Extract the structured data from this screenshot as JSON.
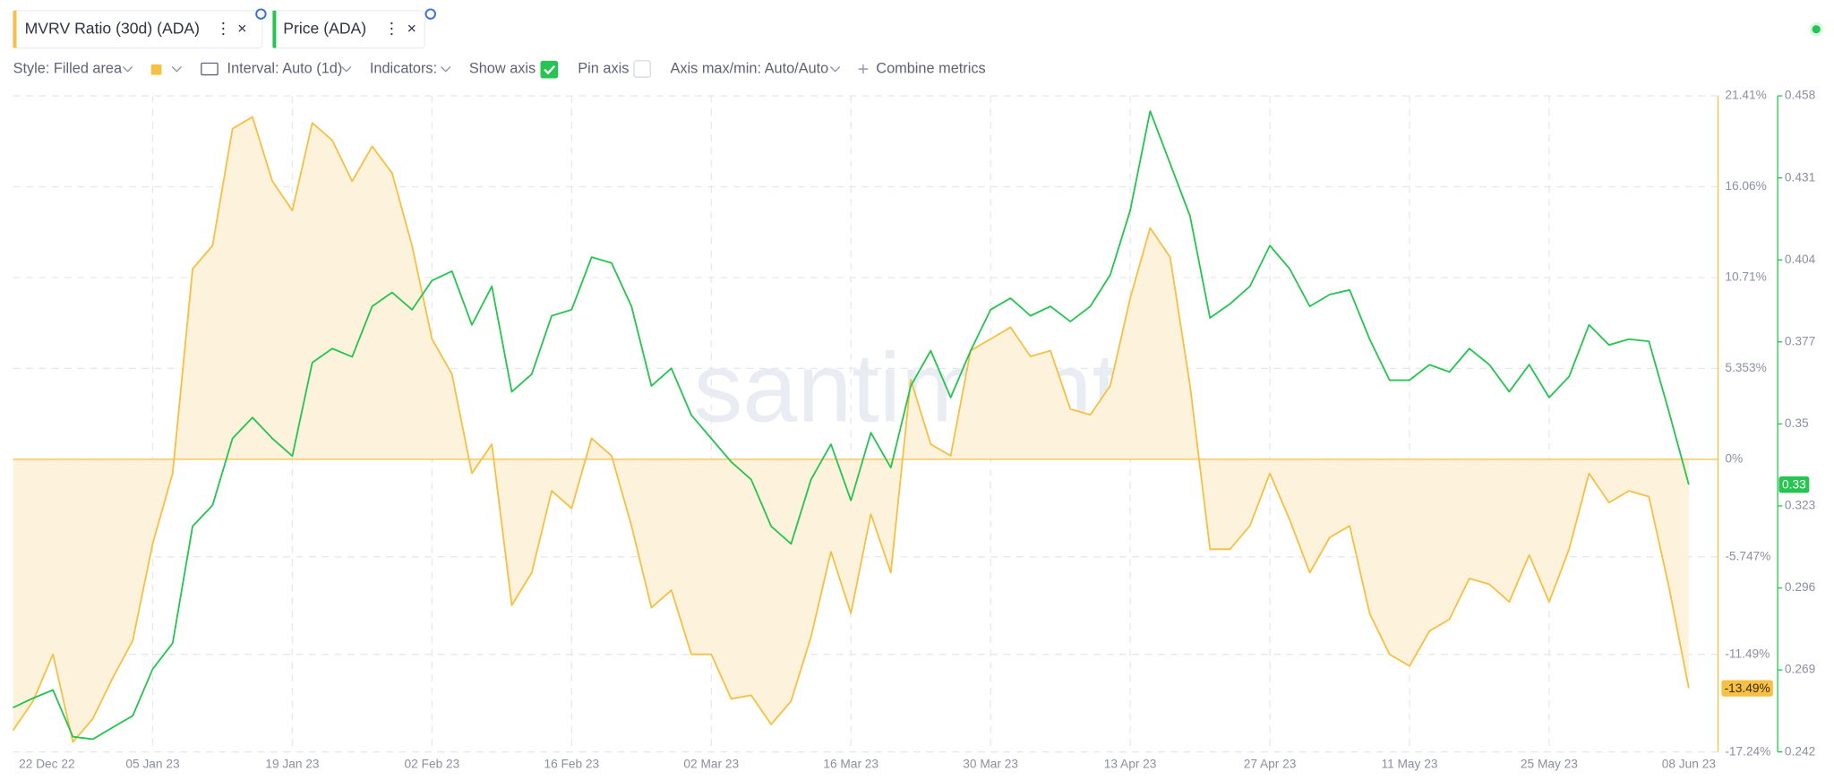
{
  "toolbar": {
    "style": "Style: Filled area",
    "interval": "Interval: Auto (1d)",
    "indicators": "Indicators:",
    "show_axis": "Show axis",
    "pin_axis": "Pin axis",
    "axis_range": "Axis max/min: Auto/Auto",
    "combine": "Combine metrics"
  },
  "watermark": "santiment",
  "chart_data": {
    "type": "line",
    "x": [
      "2022-12-22",
      "2022-12-24",
      "2022-12-26",
      "2022-12-28",
      "2022-12-30",
      "2023-01-01",
      "2023-01-03",
      "2023-01-05",
      "2023-01-07",
      "2023-01-09",
      "2023-01-11",
      "2023-01-13",
      "2023-01-15",
      "2023-01-17",
      "2023-01-19",
      "2023-01-21",
      "2023-01-23",
      "2023-01-25",
      "2023-01-27",
      "2023-01-29",
      "2023-01-31",
      "2023-02-02",
      "2023-02-04",
      "2023-02-06",
      "2023-02-08",
      "2023-02-10",
      "2023-02-12",
      "2023-02-14",
      "2023-02-16",
      "2023-02-18",
      "2023-02-20",
      "2023-02-22",
      "2023-02-24",
      "2023-02-26",
      "2023-02-28",
      "2023-03-02",
      "2023-03-04",
      "2023-03-06",
      "2023-03-08",
      "2023-03-10",
      "2023-03-12",
      "2023-03-14",
      "2023-03-16",
      "2023-03-18",
      "2023-03-20",
      "2023-03-22",
      "2023-03-24",
      "2023-03-26",
      "2023-03-28",
      "2023-03-30",
      "2023-04-01",
      "2023-04-03",
      "2023-04-05",
      "2023-04-07",
      "2023-04-09",
      "2023-04-11",
      "2023-04-13",
      "2023-04-15",
      "2023-04-17",
      "2023-04-19",
      "2023-04-21",
      "2023-04-23",
      "2023-04-25",
      "2023-04-27",
      "2023-04-29",
      "2023-05-01",
      "2023-05-03",
      "2023-05-05",
      "2023-05-07",
      "2023-05-09",
      "2023-05-11",
      "2023-05-13",
      "2023-05-15",
      "2023-05-17",
      "2023-05-19",
      "2023-05-21",
      "2023-05-23",
      "2023-05-25",
      "2023-05-27",
      "2023-05-29",
      "2023-05-31",
      "2023-06-02",
      "2023-06-04",
      "2023-06-06",
      "2023-06-08"
    ],
    "xlim": [
      "2022-12-22",
      "2023-06-08"
    ],
    "xticks": [
      {
        "value": "2022-12-22",
        "label": "22 Dec 22"
      },
      {
        "value": "2023-01-05",
        "label": "05 Jan 23"
      },
      {
        "value": "2023-01-19",
        "label": "19 Jan 23"
      },
      {
        "value": "2023-02-02",
        "label": "02 Feb 23"
      },
      {
        "value": "2023-02-16",
        "label": "16 Feb 23"
      },
      {
        "value": "2023-03-02",
        "label": "02 Mar 23"
      },
      {
        "value": "2023-03-16",
        "label": "16 Mar 23"
      },
      {
        "value": "2023-03-30",
        "label": "30 Mar 23"
      },
      {
        "value": "2023-04-13",
        "label": "13 Apr 23"
      },
      {
        "value": "2023-04-27",
        "label": "27 Apr 23"
      },
      {
        "value": "2023-05-11",
        "label": "11 May 23"
      },
      {
        "value": "2023-05-25",
        "label": "25 May 23"
      },
      {
        "value": "2023-06-08",
        "label": "08 Jun 23"
      }
    ],
    "ylim": [
      -17.24,
      21.41
    ],
    "yticks": [
      {
        "value": 21.41,
        "label": "21.41%"
      },
      {
        "value": 16.06,
        "label": "16.06%"
      },
      {
        "value": 10.71,
        "label": "10.71%"
      },
      {
        "value": 5.353,
        "label": "5.353%"
      },
      {
        "value": 0,
        "label": "0%"
      },
      {
        "value": -5.747,
        "label": "-5.747%"
      },
      {
        "value": -11.49,
        "label": "-11.49%"
      },
      {
        "value": -17.24,
        "label": "-17.24%"
      }
    ],
    "y2lim": [
      0.242,
      0.458
    ],
    "y2ticks": [
      0.458,
      0.431,
      0.404,
      0.377,
      0.35,
      0.323,
      0.296,
      0.269,
      0.242
    ],
    "grid": true,
    "series": [
      {
        "name": "MVRV Ratio (30d) (ADA)",
        "color": "#f5c044",
        "fill": "#fdf3dc",
        "axis": "y",
        "last_label": "-13.49%",
        "values": [
          -15.97,
          -14.25,
          -11.49,
          -16.66,
          -15.28,
          -12.87,
          -10.67,
          -4.96,
          -0.83,
          11.22,
          12.59,
          19.48,
          20.17,
          16.38,
          14.66,
          19.82,
          18.79,
          16.38,
          18.44,
          16.86,
          12.59,
          7.09,
          5.02,
          -0.83,
          0.89,
          -8.6,
          -6.68,
          -1.86,
          -2.89,
          1.24,
          0.21,
          -3.92,
          -8.74,
          -7.71,
          -11.49,
          -11.49,
          -14.11,
          -13.9,
          -15.62,
          -14.25,
          -10.46,
          -5.44,
          -9.08,
          -3.23,
          -6.68,
          4.68,
          0.89,
          0.21,
          6.4,
          7.09,
          7.78,
          6.06,
          6.4,
          2.96,
          2.62,
          4.34,
          9.5,
          13.63,
          11.91,
          4.34,
          -5.3,
          -5.3,
          -3.92,
          -0.83,
          -3.58,
          -6.68,
          -4.61,
          -3.92,
          -9.08,
          -11.49,
          -12.18,
          -10.12,
          -9.43,
          -7.02,
          -7.36,
          -8.4,
          -5.64,
          -8.4,
          -5.3,
          -0.83,
          -2.55,
          -1.86,
          -2.2,
          -7.5,
          -13.49
        ]
      },
      {
        "name": "Price (ADA)",
        "color": "#26c451",
        "axis": "y2",
        "last_label": "0.33",
        "values": [
          0.2566,
          0.2597,
          0.2624,
          0.247,
          0.2462,
          0.2501,
          0.2539,
          0.2693,
          0.2778,
          0.3163,
          0.3232,
          0.3452,
          0.3521,
          0.3452,
          0.3394,
          0.3702,
          0.3748,
          0.3721,
          0.3887,
          0.3933,
          0.3876,
          0.3972,
          0.4003,
          0.3826,
          0.3953,
          0.3606,
          0.3664,
          0.3856,
          0.3876,
          0.4049,
          0.403,
          0.3887,
          0.3625,
          0.3683,
          0.3529,
          0.3452,
          0.3375,
          0.3317,
          0.3163,
          0.3105,
          0.3317,
          0.3433,
          0.3248,
          0.3471,
          0.3356,
          0.3625,
          0.3741,
          0.3587,
          0.3741,
          0.3876,
          0.3914,
          0.3856,
          0.3887,
          0.3837,
          0.3887,
          0.3991,
          0.4203,
          0.453,
          0.4357,
          0.4184,
          0.3849,
          0.3895,
          0.3953,
          0.4087,
          0.401,
          0.3887,
          0.3926,
          0.3941,
          0.3779,
          0.3644,
          0.3644,
          0.3695,
          0.3671,
          0.3748,
          0.3695,
          0.3606,
          0.3695,
          0.3587,
          0.3656,
          0.3826,
          0.376,
          0.3779,
          0.3772,
          0.3541,
          0.33
        ]
      }
    ]
  }
}
